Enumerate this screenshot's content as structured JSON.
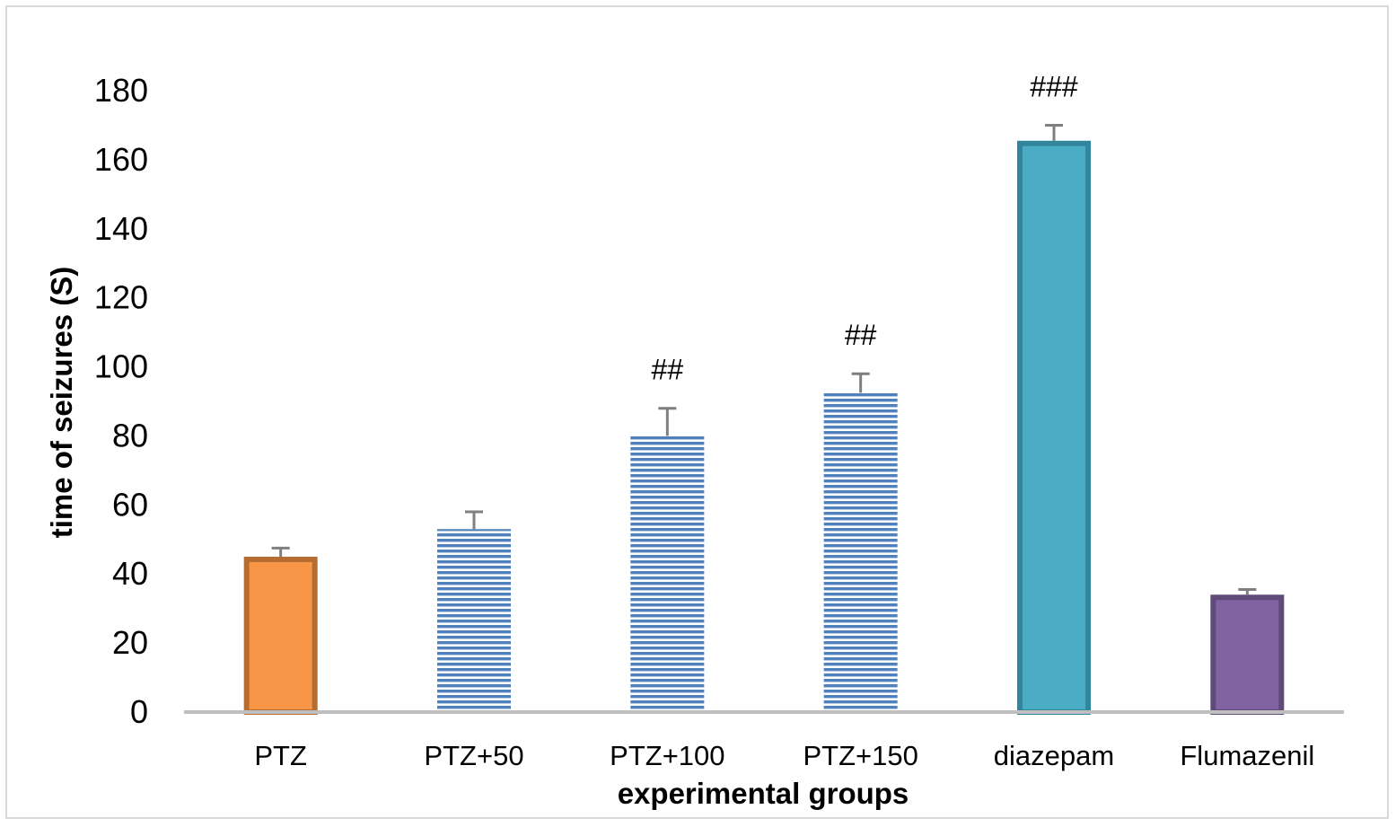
{
  "chart_data": {
    "type": "bar",
    "title": "",
    "xlabel": "experimental groups",
    "ylabel": "time of  seizures (S)",
    "ylim": [
      0,
      180
    ],
    "yticks": [
      0,
      20,
      40,
      60,
      80,
      100,
      120,
      140,
      160,
      180
    ],
    "grid": false,
    "legend": "none",
    "categories": [
      "PTZ",
      "PTZ+50",
      "PTZ+100",
      "PTZ+150",
      "diazepam",
      "Flumazenil"
    ],
    "values": [
      45,
      53,
      80,
      92.5,
      165.5,
      34
    ],
    "errors": [
      2.5,
      5,
      8,
      5.5,
      4.5,
      1.5
    ],
    "annotations": [
      "",
      "",
      "##",
      "##",
      "###",
      ""
    ],
    "styles": [
      {
        "fill": "#f79646",
        "stroke": "#b66d31",
        "pattern": "solid"
      },
      {
        "fill": "#4f81bd",
        "stroke": "#4f81bd",
        "pattern": "horizontal-stripes"
      },
      {
        "fill": "#4f81bd",
        "stroke": "#4f81bd",
        "pattern": "horizontal-stripes"
      },
      {
        "fill": "#4f81bd",
        "stroke": "#4f81bd",
        "pattern": "horizontal-stripes"
      },
      {
        "fill": "#4bacc6",
        "stroke": "#31859c",
        "pattern": "solid"
      },
      {
        "fill": "#8064a2",
        "stroke": "#5f4a79",
        "pattern": "solid"
      }
    ],
    "axis_color": "#bfbfbf",
    "error_bar_color": "#7f7f7f"
  }
}
